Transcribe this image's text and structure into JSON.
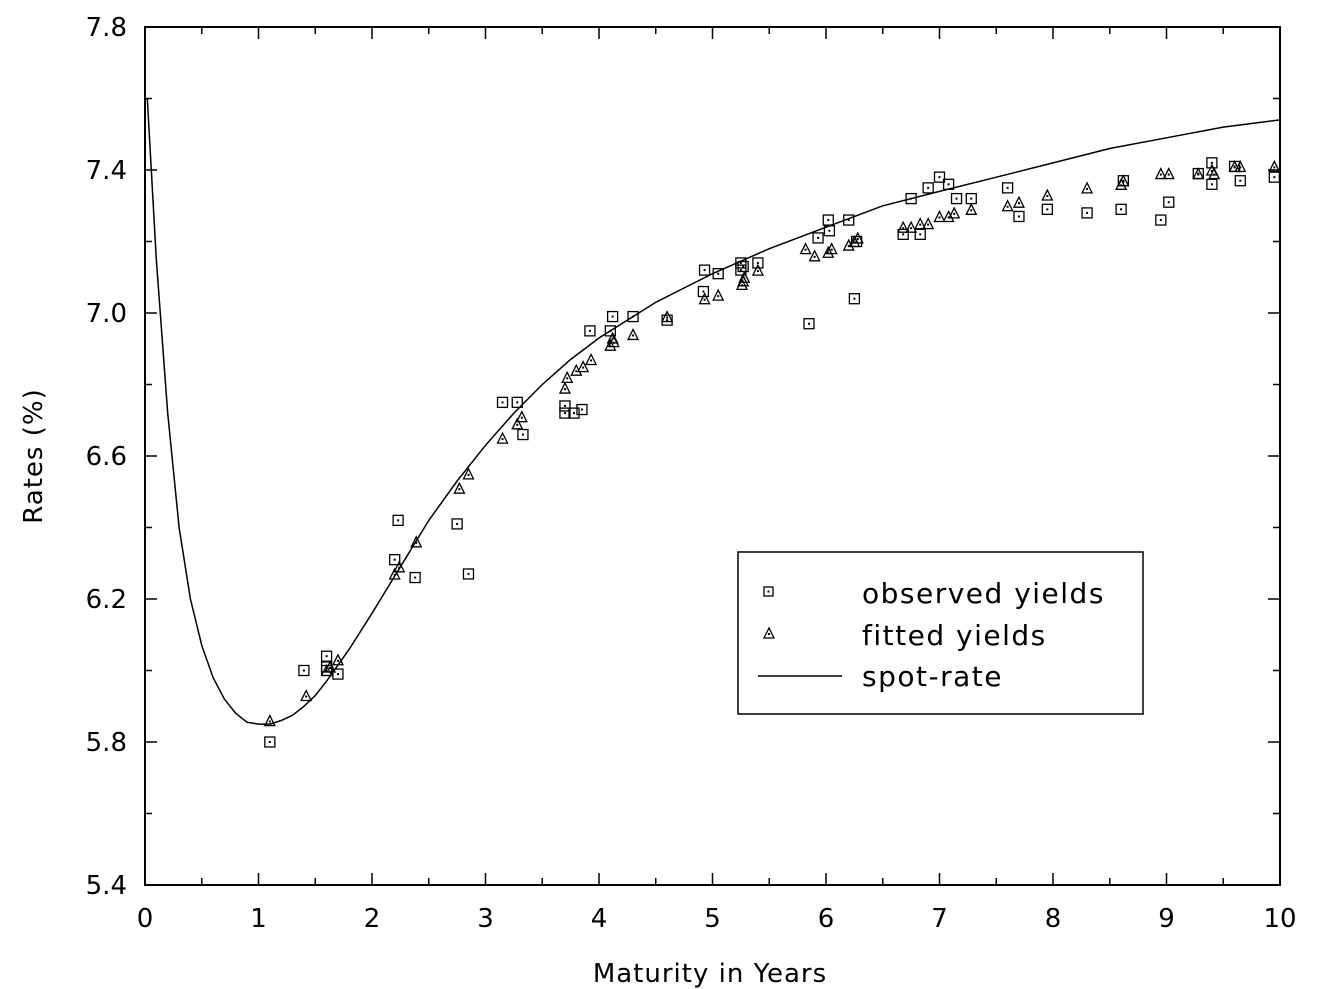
{
  "chart_data": {
    "type": "scatter",
    "xlabel": "Maturity in Years",
    "ylabel": "Rates (%)",
    "xlim": [
      0,
      10
    ],
    "ylim": [
      5.4,
      7.8
    ],
    "x_ticks": [
      "0",
      "1",
      "2",
      "3",
      "4",
      "5",
      "6",
      "7",
      "8",
      "9",
      "10"
    ],
    "y_ticks": [
      "5.4",
      "5.8",
      "6.2",
      "6.6",
      "7.0",
      "7.4",
      "7.8"
    ],
    "grid": false,
    "legend_position": "lower-right",
    "legend": [
      "observed yields",
      "fitted yields",
      "spot-rate"
    ],
    "series": [
      {
        "name": "observed yields",
        "marker": "square",
        "points": [
          [
            1.1,
            5.8
          ],
          [
            1.4,
            6.0
          ],
          [
            1.6,
            6.04
          ],
          [
            1.6,
            6.01
          ],
          [
            1.6,
            6.0
          ],
          [
            1.7,
            5.99
          ],
          [
            2.2,
            6.31
          ],
          [
            2.23,
            6.42
          ],
          [
            2.38,
            6.26
          ],
          [
            2.75,
            6.41
          ],
          [
            2.85,
            6.27
          ],
          [
            3.15,
            6.75
          ],
          [
            3.28,
            6.75
          ],
          [
            3.33,
            6.66
          ],
          [
            3.7,
            6.74
          ],
          [
            3.7,
            6.72
          ],
          [
            3.78,
            6.72
          ],
          [
            3.85,
            6.73
          ],
          [
            3.92,
            6.95
          ],
          [
            4.1,
            6.95
          ],
          [
            4.12,
            6.99
          ],
          [
            4.3,
            6.99
          ],
          [
            4.6,
            6.98
          ],
          [
            4.92,
            7.06
          ],
          [
            4.93,
            7.12
          ],
          [
            5.05,
            7.11
          ],
          [
            5.25,
            7.14
          ],
          [
            5.25,
            7.12
          ],
          [
            5.27,
            7.13
          ],
          [
            5.4,
            7.14
          ],
          [
            5.85,
            6.97
          ],
          [
            5.93,
            7.21
          ],
          [
            6.02,
            7.26
          ],
          [
            6.03,
            7.23
          ],
          [
            6.2,
            7.26
          ],
          [
            6.25,
            7.04
          ],
          [
            6.27,
            7.2
          ],
          [
            6.68,
            7.22
          ],
          [
            6.75,
            7.32
          ],
          [
            6.83,
            7.22
          ],
          [
            6.9,
            7.35
          ],
          [
            7.0,
            7.38
          ],
          [
            7.08,
            7.36
          ],
          [
            7.15,
            7.32
          ],
          [
            7.28,
            7.32
          ],
          [
            7.6,
            7.35
          ],
          [
            7.7,
            7.27
          ],
          [
            7.95,
            7.29
          ],
          [
            8.3,
            7.28
          ],
          [
            8.6,
            7.29
          ],
          [
            8.62,
            7.37
          ],
          [
            8.95,
            7.26
          ],
          [
            9.02,
            7.31
          ],
          [
            9.28,
            7.39
          ],
          [
            9.4,
            7.42
          ],
          [
            9.4,
            7.36
          ],
          [
            9.6,
            7.41
          ],
          [
            9.65,
            7.37
          ],
          [
            9.95,
            7.38
          ]
        ]
      },
      {
        "name": "fitted yields",
        "marker": "triangle",
        "points": [
          [
            1.1,
            5.86
          ],
          [
            1.42,
            5.93
          ],
          [
            1.6,
            6.0
          ],
          [
            1.63,
            6.01
          ],
          [
            1.7,
            6.03
          ],
          [
            2.2,
            6.27
          ],
          [
            2.24,
            6.29
          ],
          [
            2.39,
            6.36
          ],
          [
            2.77,
            6.51
          ],
          [
            2.85,
            6.55
          ],
          [
            3.15,
            6.65
          ],
          [
            3.28,
            6.69
          ],
          [
            3.32,
            6.71
          ],
          [
            3.7,
            6.79
          ],
          [
            3.72,
            6.82
          ],
          [
            3.8,
            6.84
          ],
          [
            3.86,
            6.85
          ],
          [
            3.93,
            6.87
          ],
          [
            4.1,
            6.91
          ],
          [
            4.12,
            6.93
          ],
          [
            4.13,
            6.92
          ],
          [
            4.3,
            6.94
          ],
          [
            4.6,
            6.99
          ],
          [
            4.93,
            7.04
          ],
          [
            5.05,
            7.05
          ],
          [
            5.26,
            7.08
          ],
          [
            5.27,
            7.09
          ],
          [
            5.28,
            7.1
          ],
          [
            5.4,
            7.12
          ],
          [
            5.82,
            7.18
          ],
          [
            5.9,
            7.16
          ],
          [
            6.02,
            7.17
          ],
          [
            6.05,
            7.18
          ],
          [
            6.2,
            7.19
          ],
          [
            6.25,
            7.2
          ],
          [
            6.28,
            7.21
          ],
          [
            6.68,
            7.24
          ],
          [
            6.75,
            7.24
          ],
          [
            6.83,
            7.25
          ],
          [
            6.9,
            7.25
          ],
          [
            7.0,
            7.27
          ],
          [
            7.08,
            7.27
          ],
          [
            7.13,
            7.28
          ],
          [
            7.28,
            7.29
          ],
          [
            7.6,
            7.3
          ],
          [
            7.7,
            7.31
          ],
          [
            7.95,
            7.33
          ],
          [
            8.3,
            7.35
          ],
          [
            8.6,
            7.36
          ],
          [
            8.62,
            7.37
          ],
          [
            8.95,
            7.39
          ],
          [
            9.02,
            7.39
          ],
          [
            9.28,
            7.39
          ],
          [
            9.4,
            7.4
          ],
          [
            9.42,
            7.39
          ],
          [
            9.6,
            7.41
          ],
          [
            9.65,
            7.41
          ],
          [
            9.95,
            7.41
          ]
        ]
      },
      {
        "name": "spot-rate",
        "marker": "line",
        "points": [
          [
            0.02,
            7.6
          ],
          [
            0.1,
            7.15
          ],
          [
            0.2,
            6.72
          ],
          [
            0.3,
            6.4
          ],
          [
            0.4,
            6.2
          ],
          [
            0.5,
            6.07
          ],
          [
            0.6,
            5.98
          ],
          [
            0.7,
            5.92
          ],
          [
            0.8,
            5.88
          ],
          [
            0.9,
            5.855
          ],
          [
            1.0,
            5.85
          ],
          [
            1.1,
            5.85
          ],
          [
            1.2,
            5.86
          ],
          [
            1.3,
            5.875
          ],
          [
            1.4,
            5.9
          ],
          [
            1.5,
            5.93
          ],
          [
            1.6,
            5.97
          ],
          [
            1.8,
            6.06
          ],
          [
            2.0,
            6.16
          ],
          [
            2.25,
            6.29
          ],
          [
            2.5,
            6.42
          ],
          [
            2.75,
            6.53
          ],
          [
            3.0,
            6.63
          ],
          [
            3.25,
            6.72
          ],
          [
            3.5,
            6.8
          ],
          [
            3.75,
            6.87
          ],
          [
            4.0,
            6.93
          ],
          [
            4.25,
            6.98
          ],
          [
            4.5,
            7.03
          ],
          [
            4.75,
            7.07
          ],
          [
            5.0,
            7.11
          ],
          [
            5.5,
            7.18
          ],
          [
            6.0,
            7.24
          ],
          [
            6.5,
            7.3
          ],
          [
            7.0,
            7.34
          ],
          [
            7.5,
            7.38
          ],
          [
            8.0,
            7.42
          ],
          [
            8.5,
            7.46
          ],
          [
            9.0,
            7.49
          ],
          [
            9.5,
            7.52
          ],
          [
            10.0,
            7.54
          ]
        ]
      }
    ]
  }
}
